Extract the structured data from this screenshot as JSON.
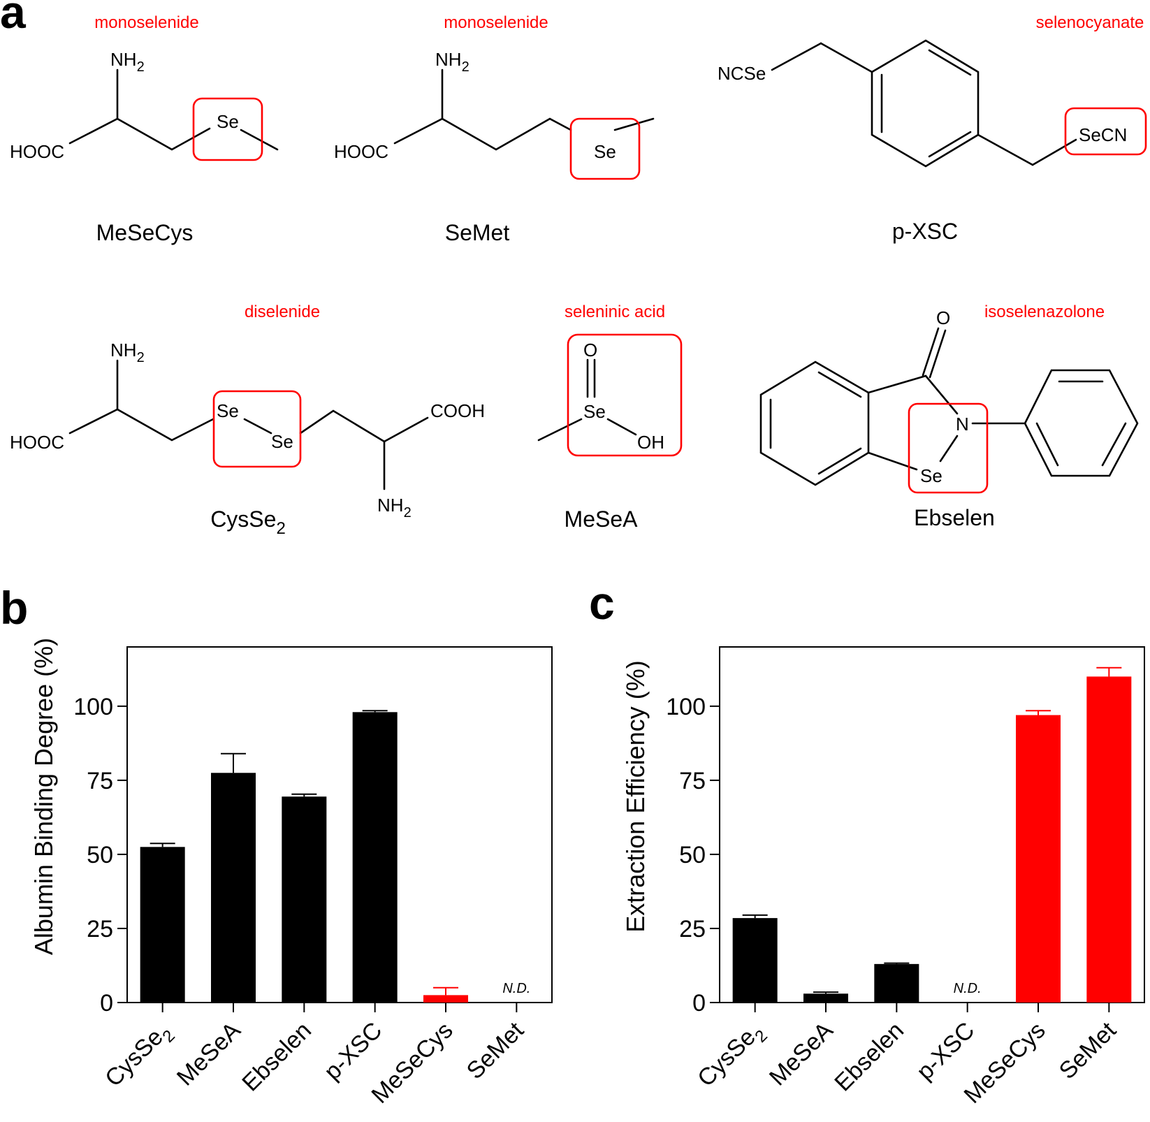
{
  "panels": {
    "a": "a",
    "b": "b",
    "c": "c"
  },
  "structures": [
    {
      "class": "monoselenide",
      "name": "MeSeCys",
      "atoms": {
        "nh2": "NH",
        "nh2_sub": "2",
        "cooh": "HOOC",
        "se": "Se"
      }
    },
    {
      "class": "monoselenide",
      "name": "SeMet",
      "atoms": {
        "nh2": "NH",
        "nh2_sub": "2",
        "cooh": "HOOC",
        "se": "Se"
      }
    },
    {
      "class": "selenocyanate",
      "name": "p-XSC",
      "atoms": {
        "ncse": "NCSe",
        "secn": "SeCN"
      }
    },
    {
      "class": "diselenide",
      "name": "CysSe",
      "name_sub": "2",
      "atoms": {
        "nh2": "NH",
        "nh2_sub": "2",
        "cooh_left": "HOOC",
        "se1": "Se",
        "se2": "Se",
        "cooh_right": "COOH",
        "nh2b": "NH",
        "nh2b_sub": "2"
      }
    },
    {
      "class": "seleninic acid",
      "name": "MeSeA",
      "atoms": {
        "o": "O",
        "se": "Se",
        "oh": "OH"
      }
    },
    {
      "class": "isoselenazolone",
      "name": "Ebselen",
      "atoms": {
        "o": "O",
        "n": "N",
        "se": "Se"
      }
    }
  ],
  "chart_data": [
    {
      "type": "bar",
      "panel": "b",
      "ylabel": "Albumin Binding Degree (%)",
      "xlabel": "",
      "ylim": [
        0,
        120
      ],
      "yticks": [
        0,
        25,
        50,
        75,
        100
      ],
      "categories": [
        "CysSe2",
        "MeSeA",
        "Ebselen",
        "p-XSC",
        "MeSeCys",
        "SeMet"
      ],
      "category_labels": [
        {
          "main": "CysSe",
          "sub": "2"
        },
        {
          "main": "MeSeA",
          "sub": ""
        },
        {
          "main": "Ebselen",
          "sub": ""
        },
        {
          "main": "p-XSC",
          "sub": ""
        },
        {
          "main": "MeSeCys",
          "sub": ""
        },
        {
          "main": "SeMet",
          "sub": ""
        }
      ],
      "values": [
        52.5,
        77.5,
        69.5,
        98,
        2.5,
        null
      ],
      "errors": [
        1.2,
        6.5,
        0.8,
        0.5,
        2.5,
        null
      ],
      "colors": [
        "#000000",
        "#000000",
        "#000000",
        "#000000",
        "#ff0000",
        "#000000"
      ],
      "nd_label": "N.D.",
      "grid": false
    },
    {
      "type": "bar",
      "panel": "c",
      "ylabel": "Extraction Efficiency (%)",
      "xlabel": "",
      "ylim": [
        0,
        120
      ],
      "yticks": [
        0,
        25,
        50,
        75,
        100
      ],
      "categories": [
        "CysSe2",
        "MeSeA",
        "Ebselen",
        "p-XSC",
        "MeSeCys",
        "SeMet"
      ],
      "category_labels": [
        {
          "main": "CysSe",
          "sub": "2"
        },
        {
          "main": "MeSeA",
          "sub": ""
        },
        {
          "main": "Ebselen",
          "sub": ""
        },
        {
          "main": "p-XSC",
          "sub": ""
        },
        {
          "main": "MeSeCys",
          "sub": ""
        },
        {
          "main": "SeMet",
          "sub": ""
        }
      ],
      "values": [
        28.5,
        3,
        13,
        null,
        97,
        110
      ],
      "errors": [
        1,
        0.5,
        0.3,
        null,
        1.5,
        3
      ],
      "colors": [
        "#000000",
        "#000000",
        "#000000",
        "#000000",
        "#ff0000",
        "#ff0000"
      ],
      "nd_label": "N.D.",
      "grid": false
    }
  ]
}
